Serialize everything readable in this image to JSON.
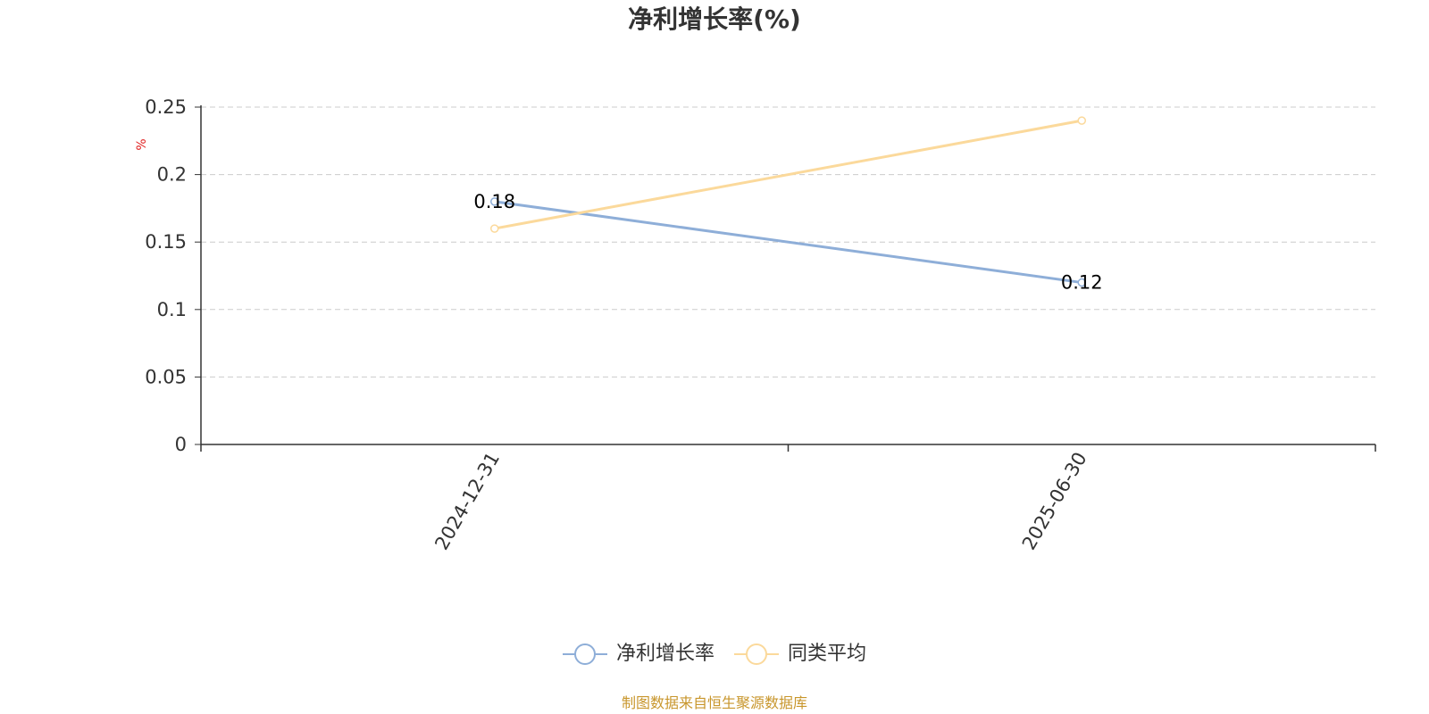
{
  "chart_data": {
    "type": "line",
    "title": "净利增长率(%)",
    "ylabel": "%",
    "xlabel": "",
    "categories": [
      "2024-12-31",
      "2025-06-30"
    ],
    "series": [
      {
        "name": "净利增长率",
        "values": [
          0.18,
          0.12
        ],
        "color": "#8eaed8",
        "show_labels": true
      },
      {
        "name": "同类平均",
        "values": [
          0.16,
          0.24
        ],
        "color": "#fbd99b",
        "show_labels": false
      }
    ],
    "data_labels": [
      "0.18",
      "0.12"
    ],
    "ylim": [
      0,
      0.25
    ],
    "yticks": [
      "0",
      "0.05",
      "0.1",
      "0.15",
      "0.2",
      "0.25"
    ],
    "grid": true,
    "legend_position": "bottom"
  },
  "footer": {
    "source_text": "制图数据来自恒生聚源数据库",
    "source_color": "#c8962c"
  },
  "colors": {
    "ylabel": "#e02020",
    "grid": "#cccccc",
    "axis": "#333333"
  }
}
